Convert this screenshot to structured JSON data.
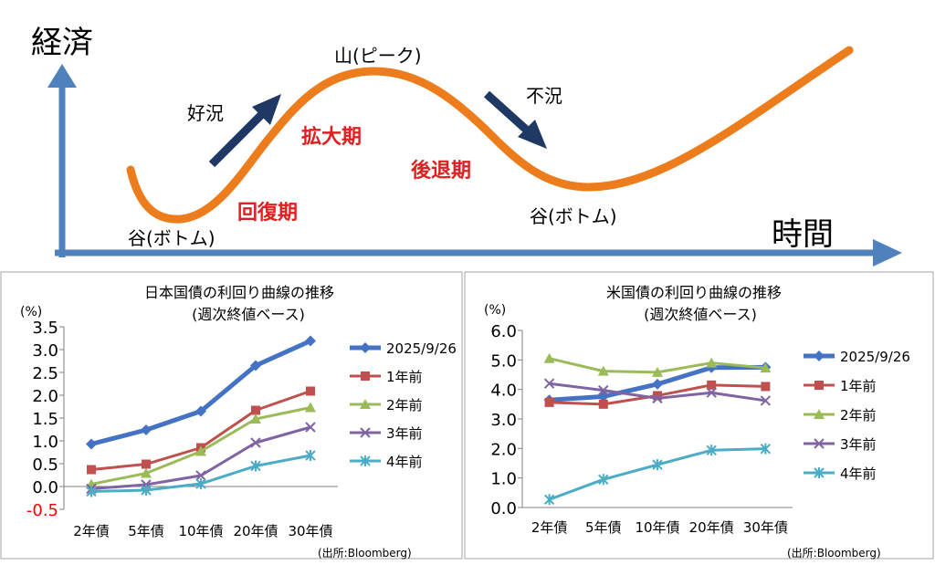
{
  "diagram": {
    "y_axis_label": "経済",
    "x_axis_label": "時間",
    "peak_label": "山(ピーク)",
    "boom_label": "好況",
    "recession_label": "不況",
    "trough_left_label": "谷(ボトム)",
    "trough_right_label": "谷(ボトム)",
    "recovery_phase": "回復期",
    "expansion_phase": "拡大期",
    "contraction_phase": "後退期",
    "colors": {
      "axis": "#4f81bd",
      "curve": "#ed7d1c",
      "arrow": "#1f3864",
      "phase": "#e02020"
    }
  },
  "chart_data": [
    {
      "type": "line",
      "title": "日本国債の利回り曲線の推移",
      "subtitle": "(週次終値ベース)",
      "ylabel": "(%)",
      "source": "(出所:Bloomberg)",
      "categories": [
        "2年債",
        "5年債",
        "10年債",
        "20年債",
        "30年債"
      ],
      "ylim": [
        -0.5,
        3.5
      ],
      "yticks": [
        "3.5",
        "3.0",
        "2.5",
        "2.0",
        "1.5",
        "1.0",
        "0.5",
        "0.0",
        "-0.5"
      ],
      "grid": false,
      "legend_position": "right",
      "series": [
        {
          "name": "2025/9/26",
          "values": [
            0.93,
            1.24,
            1.65,
            2.65,
            3.19
          ],
          "color": "#4472c4",
          "marker": "diamond"
        },
        {
          "name": "1年前",
          "values": [
            0.37,
            0.49,
            0.85,
            1.67,
            2.09
          ],
          "color": "#c0504d",
          "marker": "square"
        },
        {
          "name": "2年前",
          "values": [
            0.05,
            0.29,
            0.77,
            1.48,
            1.73
          ],
          "color": "#9bbb59",
          "marker": "triangle"
        },
        {
          "name": "3年前",
          "values": [
            -0.05,
            0.04,
            0.24,
            0.96,
            1.3
          ],
          "color": "#8064a2",
          "marker": "x"
        },
        {
          "name": "4年前",
          "values": [
            -0.11,
            -0.08,
            0.06,
            0.45,
            0.68
          ],
          "color": "#4bacc6",
          "marker": "star"
        }
      ]
    },
    {
      "type": "line",
      "title": "米国債の利回り曲線の推移",
      "subtitle": "(週次終値ベース)",
      "ylabel": "(%)",
      "source": "(出所:Bloomberg)",
      "categories": [
        "2年債",
        "5年債",
        "10年債",
        "20年債",
        "30年債"
      ],
      "ylim": [
        0,
        6
      ],
      "yticks": [
        "6.0",
        "5.0",
        "4.0",
        "3.0",
        "2.0",
        "1.0",
        "0.0"
      ],
      "grid": false,
      "legend_position": "right",
      "series": [
        {
          "name": "2025/9/26",
          "values": [
            3.64,
            3.76,
            4.18,
            4.74,
            4.75
          ],
          "color": "#4472c4",
          "marker": "diamond"
        },
        {
          "name": "1年前",
          "values": [
            3.56,
            3.5,
            3.79,
            4.15,
            4.1
          ],
          "color": "#c0504d",
          "marker": "square"
        },
        {
          "name": "2年前",
          "values": [
            5.05,
            4.62,
            4.58,
            4.9,
            4.73
          ],
          "color": "#9bbb59",
          "marker": "triangle"
        },
        {
          "name": "3年前",
          "values": [
            4.2,
            3.97,
            3.7,
            3.89,
            3.62
          ],
          "color": "#8064a2",
          "marker": "x"
        },
        {
          "name": "4年前",
          "values": [
            0.27,
            0.95,
            1.45,
            1.94,
            1.99
          ],
          "color": "#4bacc6",
          "marker": "star"
        }
      ]
    }
  ]
}
